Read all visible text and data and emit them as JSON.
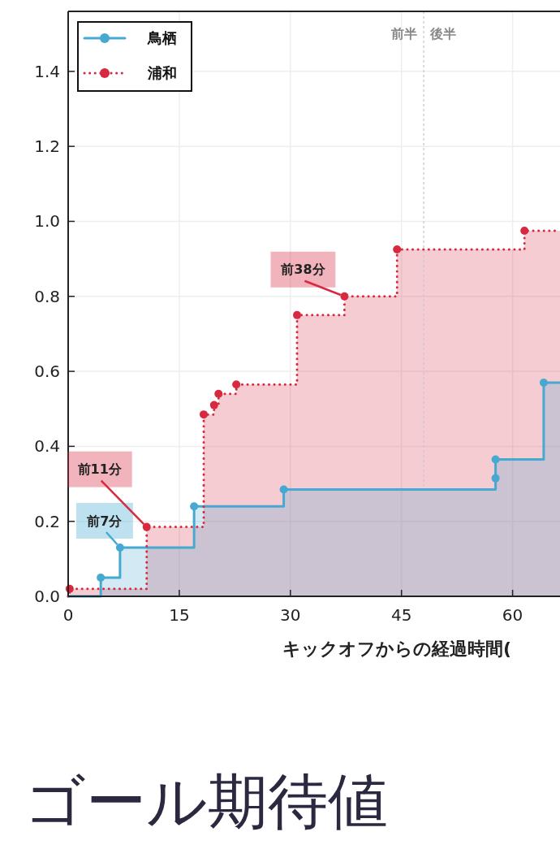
{
  "chart_data": {
    "type": "step",
    "title": "ゴール期待値",
    "xlabel": "キックオフからの経過時間(",
    "xlim": [
      0,
      66.4
    ],
    "xticks": [
      0,
      15,
      30,
      45,
      60
    ],
    "ylim": [
      0,
      1.56
    ],
    "yticks": [
      {
        "value": 0,
        "label": "0.0"
      },
      0.2,
      0.4,
      0.6,
      0.8,
      {
        "value": 1,
        "label": "1.0"
      },
      1.2,
      1.4
    ],
    "grid": true,
    "legend": "top left",
    "marker": "circle",
    "series": [
      {
        "name": "鳥栖",
        "color": "#45a9d1",
        "line_style": "solid",
        "marker": "none",
        "x": [
          0,
          4.4,
          7,
          17,
          29.1,
          57.7,
          57.7,
          64.2,
          66.4
        ],
        "values": [
          0,
          0.05,
          0.13,
          0.24,
          0.285,
          0.315,
          0.365,
          0.57,
          0.57
        ]
      },
      {
        "name": "浦和",
        "color": "#d7293f",
        "line_style": "dotted",
        "marker": "none",
        "x": [
          0,
          0.2,
          10.6,
          18.3,
          19.7,
          20.3,
          22.7,
          30.9,
          37.3,
          44.4,
          61.6,
          66.4
        ],
        "values": [
          0,
          0.02,
          0.185,
          0.485,
          0.51,
          0.54,
          0.565,
          0.75,
          0.8,
          0.925,
          0.975,
          0.975
        ]
      },
      {
        "type": "scatter",
        "color": "#45a9d1",
        "x": [
          4.4,
          7,
          17,
          29.1,
          57.7,
          57.7,
          64.2
        ],
        "values": [
          0.05,
          0.13,
          0.24,
          0.285,
          0.315,
          0.365,
          0.57
        ]
      },
      {
        "type": "scatter",
        "color": "#d7293f",
        "x": [
          0.2,
          10.6,
          18.3,
          19.7,
          20.3,
          22.7,
          30.9,
          37.3,
          44.4,
          61.6
        ],
        "values": [
          0.02,
          0.185,
          0.485,
          0.51,
          0.54,
          0.565,
          0.75,
          0.8,
          0.925,
          0.975
        ]
      }
    ],
    "ref_lines": [
      {
        "axis": "x",
        "value": 48,
        "label": "前半",
        "color": "#c8c8c8",
        "line_style": "dashed"
      }
    ],
    "annotations": [
      {
        "text": "前7分",
        "x": 7,
        "y": 0.13
      },
      {
        "text": "前11分",
        "x": 10.6,
        "y": 0.185
      },
      {
        "text": "前38分",
        "x": 37.3,
        "y": 0.8
      },
      {
        "text": "後半",
        "x": 48,
        "y": 1.5
      }
    ]
  }
}
